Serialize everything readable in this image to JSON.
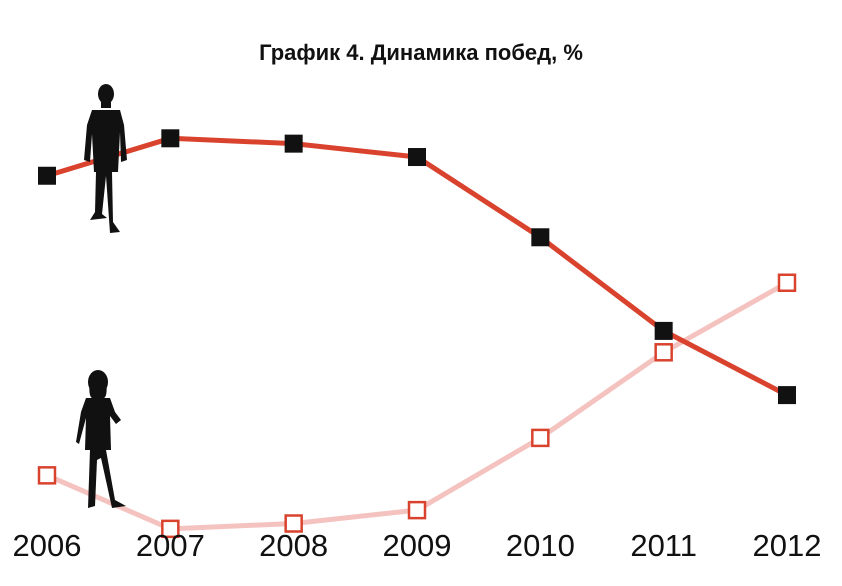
{
  "chart_data": {
    "type": "line",
    "title": "График 4. Динамика побед, %",
    "xlabel": "",
    "ylabel": "",
    "x": [
      "2006",
      "2007",
      "2008",
      "2009",
      "2010",
      "2011",
      "2012"
    ],
    "series": [
      {
        "values": [
          75,
          82,
          81,
          78.5,
          63.5,
          46,
          34
        ],
        "color": "#d9432e",
        "marker": "filled-square",
        "marker_color": "#111111",
        "icon": "businessman-silhouette-icon"
      },
      {
        "values": [
          19,
          9,
          10,
          12.5,
          26,
          42,
          55
        ],
        "color": "#f4c3c0",
        "marker": "hollow-square",
        "marker_color": "#d9432e",
        "icon": "businesswoman-silhouette-icon"
      }
    ],
    "ylim": [
      0,
      100
    ],
    "grid": false,
    "legend": "none"
  }
}
